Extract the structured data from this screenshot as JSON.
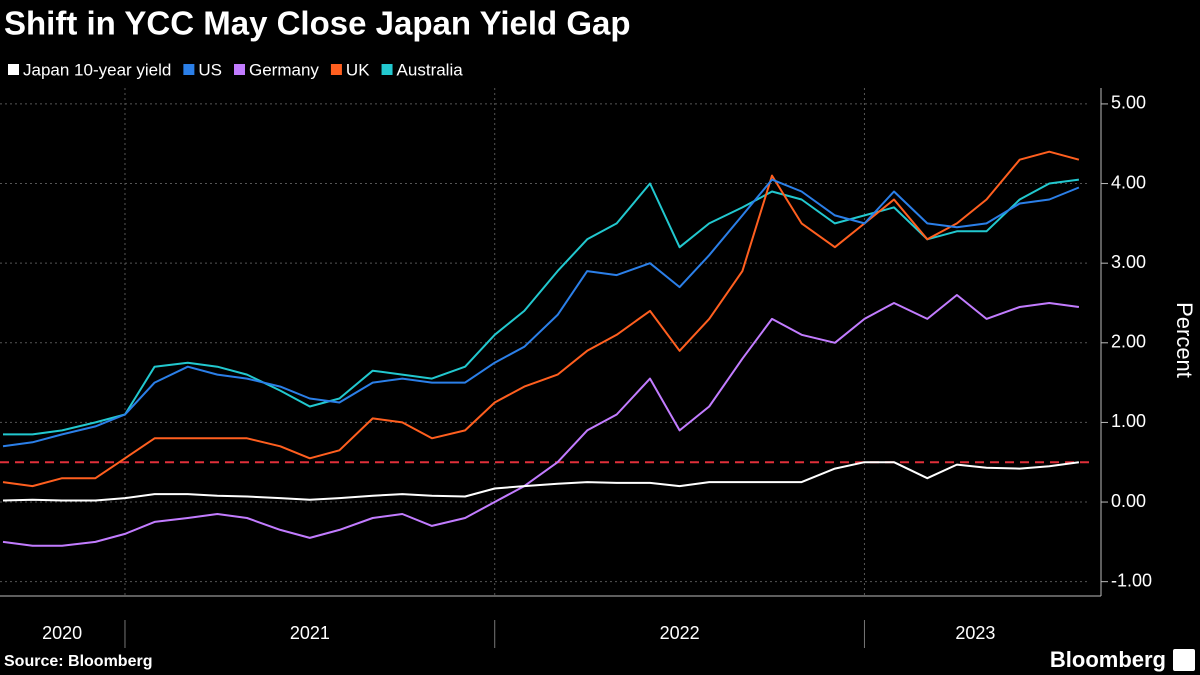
{
  "chart_data": {
    "type": "line",
    "title": "Shift in YCC May Close Japan Yield Gap",
    "y_label": "Percent",
    "source": "Source: Bloomberg",
    "brand": "Bloomberg",
    "x": [
      2020.67,
      2020.75,
      2020.83,
      2020.92,
      2021.0,
      2021.08,
      2021.17,
      2021.25,
      2021.33,
      2021.42,
      2021.5,
      2021.58,
      2021.67,
      2021.75,
      2021.83,
      2021.92,
      2022.0,
      2022.08,
      2022.17,
      2022.25,
      2022.33,
      2022.42,
      2022.5,
      2022.58,
      2022.67,
      2022.75,
      2022.83,
      2022.92,
      2023.0,
      2023.08,
      2023.17,
      2023.25,
      2023.33,
      2023.42,
      2023.5,
      2023.58
    ],
    "xlim": [
      2020.662,
      2023.61
    ],
    "xticks": [
      {
        "value": 2020.83,
        "label": "2020"
      },
      {
        "value": 2021.5,
        "label": "2021"
      },
      {
        "value": 2022.5,
        "label": "2022"
      },
      {
        "value": 2023.3,
        "label": "2023"
      }
    ],
    "ylim": [
      -1.18,
      5.2
    ],
    "yticks": [
      {
        "value": 5,
        "label": "5.00"
      },
      {
        "value": 4,
        "label": "4.00"
      },
      {
        "value": 3,
        "label": "3.00"
      },
      {
        "value": 2,
        "label": "2.00"
      },
      {
        "value": 1,
        "label": "1.00"
      },
      {
        "value": 0,
        "label": "0.00"
      },
      {
        "value": -1,
        "label": "-1.00"
      }
    ],
    "grid": true,
    "reference_line": {
      "value": 0.5,
      "color": "#e0303a"
    },
    "series": [
      {
        "name": "Japan 10-year yield",
        "color": "#ffffff",
        "values": [
          0.02,
          0.03,
          0.02,
          0.02,
          0.05,
          0.1,
          0.1,
          0.08,
          0.07,
          0.05,
          0.03,
          0.05,
          0.08,
          0.1,
          0.08,
          0.07,
          0.17,
          0.2,
          0.23,
          0.25,
          0.24,
          0.24,
          0.2,
          0.25,
          0.25,
          0.25,
          0.25,
          0.42,
          0.5,
          0.5,
          0.3,
          0.47,
          0.43,
          0.42,
          0.45,
          0.5
        ]
      },
      {
        "name": "US",
        "color": "#2b7fe8",
        "values": [
          0.7,
          0.75,
          0.85,
          0.95,
          1.1,
          1.5,
          1.7,
          1.6,
          1.55,
          1.45,
          1.3,
          1.25,
          1.5,
          1.55,
          1.5,
          1.5,
          1.75,
          1.95,
          2.35,
          2.9,
          2.85,
          3.0,
          2.7,
          3.1,
          3.6,
          4.05,
          3.9,
          3.6,
          3.5,
          3.9,
          3.5,
          3.45,
          3.5,
          3.75,
          3.8,
          3.95
        ]
      },
      {
        "name": "Germany",
        "color": "#c27cff",
        "values": [
          -0.5,
          -0.55,
          -0.55,
          -0.5,
          -0.4,
          -0.25,
          -0.2,
          -0.15,
          -0.2,
          -0.35,
          -0.45,
          -0.35,
          -0.2,
          -0.15,
          -0.3,
          -0.2,
          0.0,
          0.2,
          0.5,
          0.9,
          1.1,
          1.55,
          0.9,
          1.2,
          1.8,
          2.3,
          2.1,
          2.0,
          2.3,
          2.5,
          2.3,
          2.6,
          2.3,
          2.45,
          2.5,
          2.45
        ]
      },
      {
        "name": "UK",
        "color": "#ff5f1f",
        "values": [
          0.25,
          0.2,
          0.3,
          0.3,
          0.55,
          0.8,
          0.8,
          0.8,
          0.8,
          0.7,
          0.55,
          0.65,
          1.05,
          1.0,
          0.8,
          0.9,
          1.25,
          1.45,
          1.6,
          1.9,
          2.1,
          2.4,
          1.9,
          2.3,
          2.9,
          4.1,
          3.5,
          3.2,
          3.5,
          3.8,
          3.3,
          3.5,
          3.8,
          4.3,
          4.4,
          4.3
        ]
      },
      {
        "name": "Australia",
        "color": "#22c8cf",
        "values": [
          0.85,
          0.85,
          0.9,
          1.0,
          1.1,
          1.7,
          1.75,
          1.7,
          1.6,
          1.4,
          1.2,
          1.3,
          1.65,
          1.6,
          1.55,
          1.7,
          2.1,
          2.4,
          2.9,
          3.3,
          3.5,
          4.0,
          3.2,
          3.5,
          3.7,
          3.9,
          3.8,
          3.5,
          3.6,
          3.7,
          3.3,
          3.4,
          3.4,
          3.8,
          4.0,
          4.05
        ]
      }
    ]
  }
}
